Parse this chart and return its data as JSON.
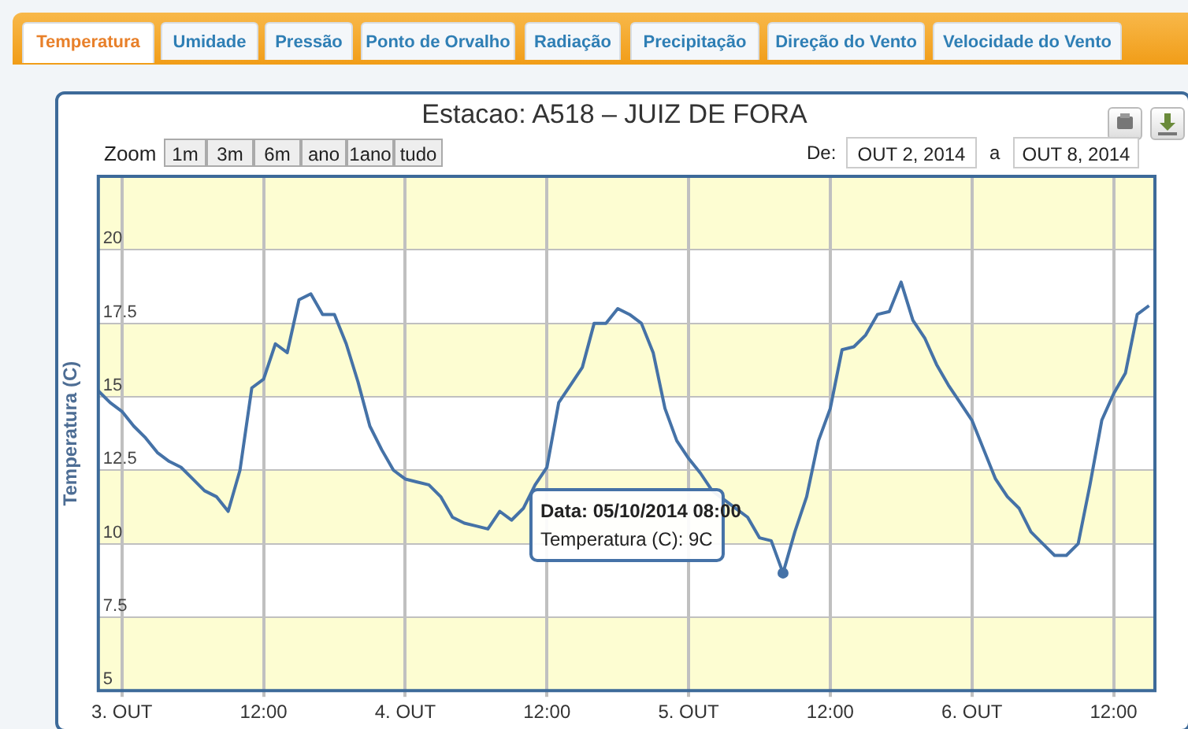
{
  "chart_data": {
    "type": "line",
    "title": "Estacao: A518 – JUIZ DE FORA",
    "ylabel": "Temperatura (C)",
    "x": [
      "2014-10-02T22:00",
      "2014-10-02T23:00",
      "2014-10-03T00:00",
      "2014-10-03T01:00",
      "2014-10-03T02:00",
      "2014-10-03T03:00",
      "2014-10-03T04:00",
      "2014-10-03T05:00",
      "2014-10-03T06:00",
      "2014-10-03T07:00",
      "2014-10-03T08:00",
      "2014-10-03T09:00",
      "2014-10-03T10:00",
      "2014-10-03T11:00",
      "2014-10-03T12:00",
      "2014-10-03T13:00",
      "2014-10-03T14:00",
      "2014-10-03T15:00",
      "2014-10-03T16:00",
      "2014-10-03T17:00",
      "2014-10-03T18:00",
      "2014-10-03T19:00",
      "2014-10-03T20:00",
      "2014-10-03T21:00",
      "2014-10-03T22:00",
      "2014-10-03T23:00",
      "2014-10-04T00:00",
      "2014-10-04T01:00",
      "2014-10-04T02:00",
      "2014-10-04T03:00",
      "2014-10-04T04:00",
      "2014-10-04T05:00",
      "2014-10-04T06:00",
      "2014-10-04T07:00",
      "2014-10-04T08:00",
      "2014-10-04T09:00",
      "2014-10-04T10:00",
      "2014-10-04T11:00",
      "2014-10-04T12:00",
      "2014-10-04T13:00",
      "2014-10-04T14:00",
      "2014-10-04T15:00",
      "2014-10-04T16:00",
      "2014-10-04T17:00",
      "2014-10-04T18:00",
      "2014-10-04T19:00",
      "2014-10-04T20:00",
      "2014-10-04T21:00",
      "2014-10-04T22:00",
      "2014-10-04T23:00",
      "2014-10-05T00:00",
      "2014-10-05T01:00",
      "2014-10-05T02:00",
      "2014-10-05T03:00",
      "2014-10-05T04:00",
      "2014-10-05T05:00",
      "2014-10-05T06:00",
      "2014-10-05T07:00",
      "2014-10-05T08:00",
      "2014-10-05T09:00",
      "2014-10-05T10:00",
      "2014-10-05T11:00",
      "2014-10-05T12:00",
      "2014-10-05T13:00",
      "2014-10-05T14:00",
      "2014-10-05T15:00",
      "2014-10-05T16:00",
      "2014-10-05T17:00",
      "2014-10-05T18:00",
      "2014-10-05T19:00",
      "2014-10-05T20:00",
      "2014-10-05T21:00",
      "2014-10-05T22:00",
      "2014-10-05T23:00",
      "2014-10-06T00:00",
      "2014-10-06T01:00",
      "2014-10-06T02:00",
      "2014-10-06T03:00",
      "2014-10-06T04:00",
      "2014-10-06T05:00",
      "2014-10-06T06:00",
      "2014-10-06T07:00",
      "2014-10-06T08:00",
      "2014-10-06T09:00",
      "2014-10-06T10:00",
      "2014-10-06T11:00",
      "2014-10-06T12:00",
      "2014-10-06T13:00",
      "2014-10-06T14:00",
      "2014-10-06T15:00"
    ],
    "series": [
      {
        "color": "#4572a7",
        "values": [
          15.2,
          14.8,
          14.5,
          14.0,
          13.6,
          13.1,
          12.8,
          12.6,
          12.2,
          11.8,
          11.6,
          11.1,
          12.5,
          15.3,
          15.6,
          16.8,
          16.5,
          18.3,
          18.5,
          17.8,
          17.8,
          16.8,
          15.5,
          14.0,
          13.2,
          12.5,
          12.2,
          12.1,
          12.0,
          11.6,
          10.9,
          10.7,
          10.6,
          10.5,
          11.1,
          10.8,
          11.2,
          12.0,
          12.6,
          14.8,
          15.4,
          16.0,
          17.5,
          17.5,
          18.0,
          17.8,
          17.5,
          16.5,
          14.6,
          13.5,
          12.9,
          12.4,
          11.8,
          11.5,
          11.2,
          10.9,
          10.2,
          10.1,
          9,
          10.4,
          11.6,
          13.5,
          14.6,
          16.6,
          16.7,
          17.1,
          17.8,
          17.9,
          18.9,
          17.6,
          17.0,
          16.1,
          15.4,
          14.8,
          14.2,
          13.2,
          12.2,
          11.6,
          11.2,
          10.4,
          10.0,
          9.6,
          9.6,
          10.0,
          12.0,
          14.2,
          15.1,
          15.8,
          17.8,
          18.1
        ]
      }
    ],
    "xlim": [
      "2014-10-02T22:00",
      "2014-10-06T15:30"
    ],
    "xticks": [
      {
        "value": "2014-10-03T00:00",
        "label": "3. OUT"
      },
      {
        "value": "2014-10-03T12:00",
        "label": "12:00"
      },
      {
        "value": "2014-10-04T00:00",
        "label": "4. OUT"
      },
      {
        "value": "2014-10-04T12:00",
        "label": "12:00"
      },
      {
        "value": "2014-10-05T00:00",
        "label": "5. OUT"
      },
      {
        "value": "2014-10-05T12:00",
        "label": "12:00"
      },
      {
        "value": "2014-10-06T00:00",
        "label": "6. OUT"
      },
      {
        "value": "2014-10-06T12:00",
        "label": "12:00"
      }
    ],
    "ylim": [
      5,
      22.5
    ],
    "yticks": [
      5,
      7.5,
      10,
      12.5,
      15,
      17.5,
      20
    ],
    "grid": true,
    "marker": "none",
    "bands": [
      {
        "axis": "y",
        "from": 5,
        "to": 7.5,
        "color": "#fdfdd2"
      },
      {
        "axis": "y",
        "from": 10,
        "to": 12.5,
        "color": "#fdfdd2"
      },
      {
        "axis": "y",
        "from": 15,
        "to": 17.5,
        "color": "#fdfdd2"
      },
      {
        "axis": "y",
        "from": 20,
        "to": 22.5,
        "color": "#fdfdd2"
      }
    ],
    "annotations": [
      "Temperatura",
      "Umidade",
      "Pressão",
      "Ponto de Orvalho",
      "Radiação",
      "Precipitação",
      "Direção do Vento",
      "Velocidade do Vento",
      "Zoom",
      "1m",
      "3m",
      "6m",
      "ano",
      "1ano",
      "tudo",
      "De:",
      "OUT 2, 2014",
      "a",
      "OUT 8, 2014",
      {
        "text": "Data: 05/10/2014 08:00\nTemperatura (C): 9C",
        "x": "2014-10-05T08:00",
        "y": 9
      }
    ]
  }
}
